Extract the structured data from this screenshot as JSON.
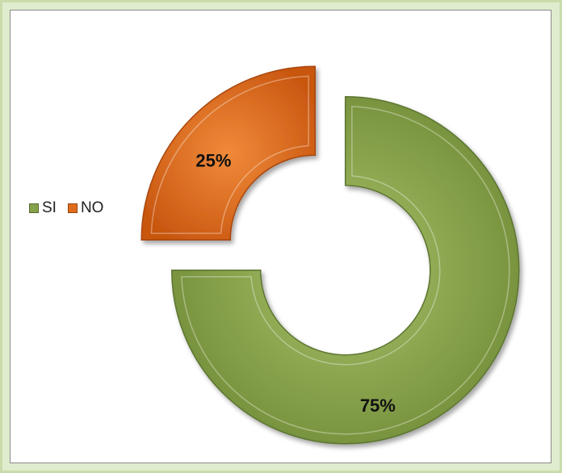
{
  "chart_data": {
    "type": "pie",
    "variant": "doughnut",
    "exploded": true,
    "title": "",
    "categories": [
      "SI",
      "NO"
    ],
    "values": [
      75,
      25
    ],
    "data_labels": [
      "75%",
      "25%"
    ],
    "colors": [
      "#86a14b",
      "#e06c1b"
    ],
    "legend_position": "left"
  }
}
